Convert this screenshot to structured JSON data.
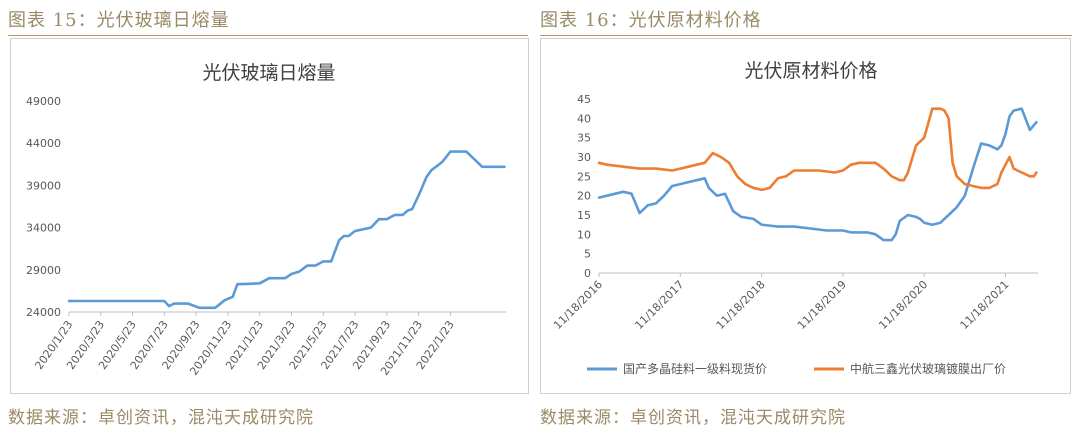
{
  "headings": {
    "left_fig": "图表 15：光伏玻璃日熔量",
    "right_fig": "图表 16：光伏原材料价格",
    "left_source": "数据来源：卓创资讯，混沌天成研究院",
    "right_source": "数据来源：卓创资讯，混沌天成研究院"
  },
  "chart_data": [
    {
      "type": "line",
      "title": "光伏玻璃日熔量",
      "xlabel": "",
      "ylabel": "",
      "x_ticks": [
        "2020/1/23",
        "2020/3/23",
        "2020/5/23",
        "2020/7/23",
        "2020/9/23",
        "2020/11/23",
        "2021/1/23",
        "2021/3/23",
        "2021/5/23",
        "2021/7/23",
        "2021/9/23",
        "2021/11/23",
        "2022/1/23"
      ],
      "y_ticks": [
        24000,
        29000,
        34000,
        39000,
        44000,
        49000
      ],
      "ylim": [
        24000,
        49000
      ],
      "xlim": [
        0,
        27.5
      ],
      "grid": "none",
      "colors": [
        "#5b9bd5"
      ],
      "series": [
        {
          "name": "",
          "color": "#5b9bd5",
          "x": [
            0,
            1,
            2,
            3,
            4,
            5,
            6,
            6.3,
            6.6,
            7.5,
            8.2,
            8.8,
            9.2,
            9.8,
            10.3,
            10.6,
            11,
            12,
            12.6,
            13.2,
            13.6,
            14,
            14.5,
            15,
            15.5,
            16,
            16.5,
            17,
            17.3,
            17.6,
            18,
            18.5,
            19,
            19.5,
            20,
            20.5,
            21,
            21.3,
            21.6,
            22,
            22.5,
            22.8,
            23.3,
            23.5,
            24,
            25,
            26,
            26.5,
            27,
            27.4
          ],
          "values": [
            25300,
            25300,
            25300,
            25300,
            25300,
            25300,
            25300,
            24700,
            25000,
            25000,
            24500,
            24500,
            24500,
            25400,
            25800,
            27300,
            27300,
            27400,
            28000,
            28000,
            28000,
            28500,
            28800,
            29500,
            29500,
            30000,
            30000,
            32500,
            33000,
            33000,
            33600,
            33800,
            34000,
            35000,
            35000,
            35500,
            35500,
            36000,
            36200,
            37800,
            40000,
            40800,
            41500,
            41800,
            43000,
            43000,
            41200,
            41200,
            41200,
            41200
          ]
        }
      ]
    },
    {
      "type": "line",
      "title": "光伏原材料价格",
      "xlabel": "",
      "ylabel": "",
      "x_ticks": [
        "11/18/2016",
        "11/18/2017",
        "11/18/2018",
        "11/18/2019",
        "11/18/2020",
        "11/18/2021"
      ],
      "y_ticks": [
        0,
        5,
        10,
        15,
        20,
        25,
        30,
        35,
        40,
        45
      ],
      "ylim": [
        0,
        45
      ],
      "xlim": [
        0,
        5.4
      ],
      "grid": "none",
      "legend_position": "bottom",
      "series": [
        {
          "name": "国产多晶硅料一级料现货价",
          "color": "#5b9bd5",
          "x": [
            0,
            0.1,
            0.2,
            0.3,
            0.4,
            0.45,
            0.5,
            0.6,
            0.7,
            0.8,
            0.9,
            1.0,
            1.1,
            1.2,
            1.3,
            1.35,
            1.45,
            1.55,
            1.65,
            1.75,
            1.9,
            2.0,
            2.2,
            2.4,
            2.6,
            2.8,
            3.0,
            3.1,
            3.3,
            3.4,
            3.5,
            3.6,
            3.65,
            3.7,
            3.8,
            3.9,
            3.95,
            4.0,
            4.1,
            4.2,
            4.3,
            4.4,
            4.5,
            4.6,
            4.7,
            4.8,
            4.85,
            4.9,
            4.95,
            5.0,
            5.05,
            5.1,
            5.2,
            5.3,
            5.38
          ],
          "values": [
            19.5,
            20,
            20.5,
            21,
            20.5,
            18,
            15.5,
            17.5,
            18,
            20,
            22.5,
            23,
            23.5,
            24,
            24.5,
            22,
            20,
            20.5,
            16,
            14.5,
            14,
            12.5,
            12,
            12,
            11.5,
            11,
            11,
            10.5,
            10.5,
            10,
            8.5,
            8.5,
            10,
            13.5,
            15,
            14.5,
            14,
            13,
            12.5,
            13,
            15,
            17,
            20,
            27,
            33.5,
            33,
            32.5,
            32,
            33,
            36,
            40.5,
            42,
            42.5,
            37,
            39
          ]
        },
        {
          "name": "中航三鑫光伏玻璃镀膜出厂价",
          "color": "#ed7d31",
          "x": [
            0,
            0.1,
            0.3,
            0.5,
            0.7,
            0.9,
            1.0,
            1.1,
            1.2,
            1.3,
            1.4,
            1.5,
            1.6,
            1.7,
            1.8,
            1.9,
            2.0,
            2.1,
            2.2,
            2.3,
            2.4,
            2.6,
            2.7,
            2.9,
            3.0,
            3.1,
            3.2,
            3.4,
            3.5,
            3.6,
            3.7,
            3.75,
            3.8,
            3.9,
            4.0,
            4.1,
            4.2,
            4.25,
            4.3,
            4.35,
            4.4,
            4.5,
            4.6,
            4.7,
            4.8,
            4.9,
            4.95,
            5.0,
            5.05,
            5.1,
            5.2,
            5.3,
            5.35,
            5.38
          ],
          "values": [
            28.5,
            28,
            27.5,
            27,
            27,
            26.5,
            27,
            27.5,
            28,
            28.5,
            31,
            30,
            28.5,
            25,
            23,
            22,
            21.5,
            22,
            24.5,
            25,
            26.5,
            26.5,
            26.5,
            26,
            26.5,
            28,
            28.5,
            28.5,
            27,
            25,
            24,
            24,
            26,
            33,
            35,
            42.5,
            42.5,
            42,
            40,
            28.5,
            25,
            23,
            22.5,
            22,
            22,
            23,
            26,
            28,
            30,
            27,
            26,
            25,
            25,
            26
          ]
        }
      ]
    }
  ]
}
